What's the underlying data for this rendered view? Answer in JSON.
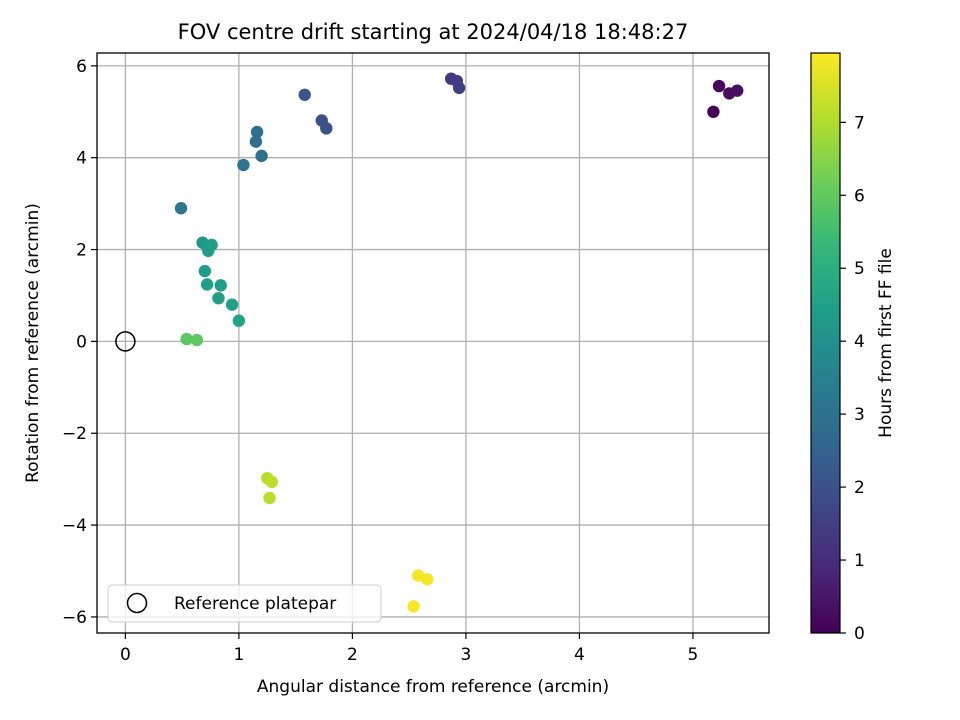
{
  "chart_data": {
    "type": "scatter",
    "title": "FOV centre drift starting at 2024/04/18 18:48:27",
    "xlabel": "Angular distance from reference (arcmin)",
    "ylabel": "Rotation from reference (arcmin)",
    "xlim": [
      -0.25,
      5.67
    ],
    "ylim": [
      -6.35,
      6.28
    ],
    "xticks": [
      0,
      1,
      2,
      3,
      4,
      5
    ],
    "yticks": [
      -6,
      -4,
      -2,
      0,
      2,
      4,
      6
    ],
    "xtick_labels": [
      "0",
      "1",
      "2",
      "3",
      "4",
      "5"
    ],
    "ytick_labels": [
      "−6",
      "−4",
      "−2",
      "0",
      "2",
      "4",
      "6"
    ],
    "grid": true,
    "legend": {
      "position": "lower-left",
      "entries": [
        "Reference platepar"
      ]
    },
    "reference_point": {
      "x": 0,
      "y": 0,
      "marker": "open-circle",
      "color": "#000000"
    },
    "colorbar": {
      "label": "Hours from first FF file",
      "colormap": "viridis",
      "range": [
        0,
        7.95
      ],
      "ticks": [
        0,
        1,
        2,
        3,
        4,
        5,
        6,
        7
      ],
      "tick_labels": [
        "0",
        "1",
        "2",
        "3",
        "4",
        "5",
        "6",
        "7"
      ]
    },
    "points": [
      {
        "x": 5.18,
        "y": 5.0,
        "c": 0.05
      },
      {
        "x": 5.23,
        "y": 5.56,
        "c": 0.15
      },
      {
        "x": 5.32,
        "y": 5.4,
        "c": 0.25
      },
      {
        "x": 5.39,
        "y": 5.46,
        "c": 0.35
      },
      {
        "x": 2.87,
        "y": 5.72,
        "c": 1.3
      },
      {
        "x": 2.92,
        "y": 5.67,
        "c": 1.4
      },
      {
        "x": 2.94,
        "y": 5.52,
        "c": 1.5
      },
      {
        "x": 1.58,
        "y": 5.37,
        "c": 2.1
      },
      {
        "x": 1.73,
        "y": 4.81,
        "c": 2.0
      },
      {
        "x": 1.77,
        "y": 4.64,
        "c": 2.0
      },
      {
        "x": 1.16,
        "y": 4.56,
        "c": 2.9
      },
      {
        "x": 1.15,
        "y": 4.35,
        "c": 2.95
      },
      {
        "x": 1.2,
        "y": 4.04,
        "c": 2.95
      },
      {
        "x": 1.04,
        "y": 3.84,
        "c": 3.0
      },
      {
        "x": 0.49,
        "y": 2.9,
        "c": 3.2
      },
      {
        "x": 0.68,
        "y": 2.15,
        "c": 4.2
      },
      {
        "x": 0.72,
        "y": 2.07,
        "c": 4.3
      },
      {
        "x": 0.76,
        "y": 2.1,
        "c": 4.35
      },
      {
        "x": 0.73,
        "y": 1.97,
        "c": 4.4
      },
      {
        "x": 0.7,
        "y": 1.53,
        "c": 4.4
      },
      {
        "x": 0.72,
        "y": 1.24,
        "c": 4.45
      },
      {
        "x": 0.84,
        "y": 1.22,
        "c": 4.45
      },
      {
        "x": 0.82,
        "y": 0.94,
        "c": 4.5
      },
      {
        "x": 0.94,
        "y": 0.8,
        "c": 4.5
      },
      {
        "x": 1.0,
        "y": 0.45,
        "c": 4.55
      },
      {
        "x": 0.54,
        "y": 0.05,
        "c": 5.9
      },
      {
        "x": 0.63,
        "y": 0.03,
        "c": 5.95
      },
      {
        "x": 1.25,
        "y": -2.98,
        "c": 7.1
      },
      {
        "x": 1.29,
        "y": -3.06,
        "c": 7.15
      },
      {
        "x": 1.27,
        "y": -3.41,
        "c": 7.1
      },
      {
        "x": 2.58,
        "y": -5.1,
        "c": 7.85
      },
      {
        "x": 2.66,
        "y": -5.18,
        "c": 7.85
      },
      {
        "x": 2.54,
        "y": -5.77,
        "c": 7.9
      }
    ]
  }
}
